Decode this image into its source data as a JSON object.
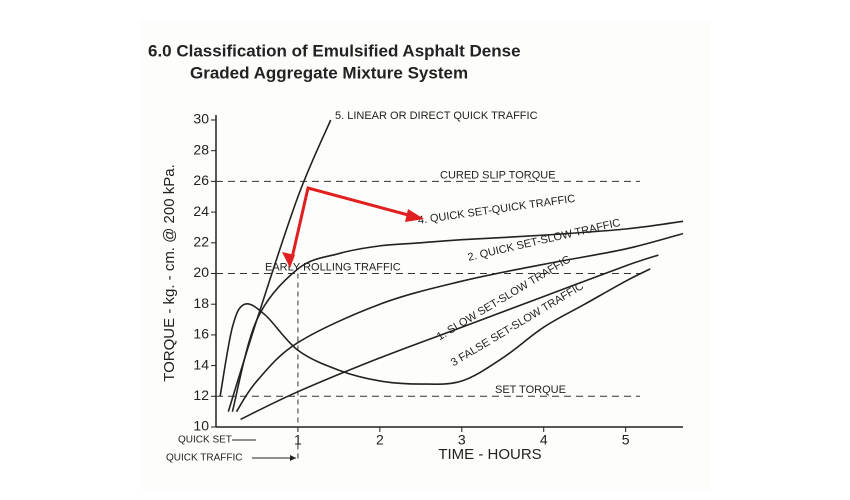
{
  "chart_data": {
    "type": "line",
    "title": [
      "6.0 Classification of Emulsified Asphalt Dense",
      "Graded Aggregate Mixture System"
    ],
    "x_label": "TIME - HOURS",
    "y_label": "TORQUE - kg. - cm. @ 200 kPa.",
    "xlim": [
      0,
      5.7
    ],
    "ylim": [
      10,
      30
    ],
    "xticks": [
      1,
      2,
      3,
      4,
      5
    ],
    "yticks": [
      10,
      12,
      14,
      16,
      18,
      20,
      22,
      24,
      26,
      28,
      30
    ],
    "series": [
      {
        "name": "5. LINEAR OR DIRECT QUICK TRAFFIC",
        "color": "#222222",
        "x": [
          0.15,
          0.5,
          1.0,
          1.4
        ],
        "values": [
          11,
          17,
          25,
          30
        ]
      },
      {
        "name": "4. QUICK SET-QUICK TRAFFIC",
        "color": "#222222",
        "x": [
          0.2,
          0.5,
          1,
          1.5,
          2,
          2.5,
          3,
          4,
          5,
          5.7
        ],
        "values": [
          11,
          17,
          20.3,
          21.3,
          21.8,
          22,
          22.2,
          22.5,
          22.9,
          23.4
        ]
      },
      {
        "name": "2. QUICK SET-SLOW TRAFFIC",
        "color": "#222222",
        "x": [
          0.25,
          0.5,
          1,
          2,
          3,
          4,
          5,
          5.7
        ],
        "values": [
          11,
          13,
          15.5,
          18,
          19.5,
          20.6,
          21.6,
          22.6
        ]
      },
      {
        "name": "1. SLOW SET-SLOW TRAFFIC",
        "color": "#222222",
        "x": [
          0.3,
          1,
          2,
          3,
          4,
          5,
          5.4
        ],
        "values": [
          10.5,
          12.3,
          14.5,
          16.5,
          18.5,
          20.5,
          21.2
        ]
      },
      {
        "name": "3 FALSE SET-SLOW TRAFFIC",
        "color": "#222222",
        "x": [
          0.05,
          0.2,
          0.35,
          0.6,
          1,
          1.5,
          2,
          2.5,
          3,
          3.5,
          4,
          4.5,
          5,
          5.3
        ],
        "values": [
          12,
          16.5,
          18,
          17.3,
          15,
          13.7,
          13,
          12.8,
          13,
          14.5,
          16.5,
          18,
          19.5,
          20.3
        ]
      }
    ],
    "reference_lines": [
      {
        "value": 26,
        "label": "CURED SLIP TORQUE"
      },
      {
        "value": 20,
        "label": "EARLY ROLLING TRAFFIC"
      },
      {
        "value": 12,
        "label": "SET TORQUE"
      }
    ],
    "vertical_reference": 1,
    "bottom_notes": [
      "QUICK SET",
      "QUICK TRAFFIC"
    ]
  }
}
